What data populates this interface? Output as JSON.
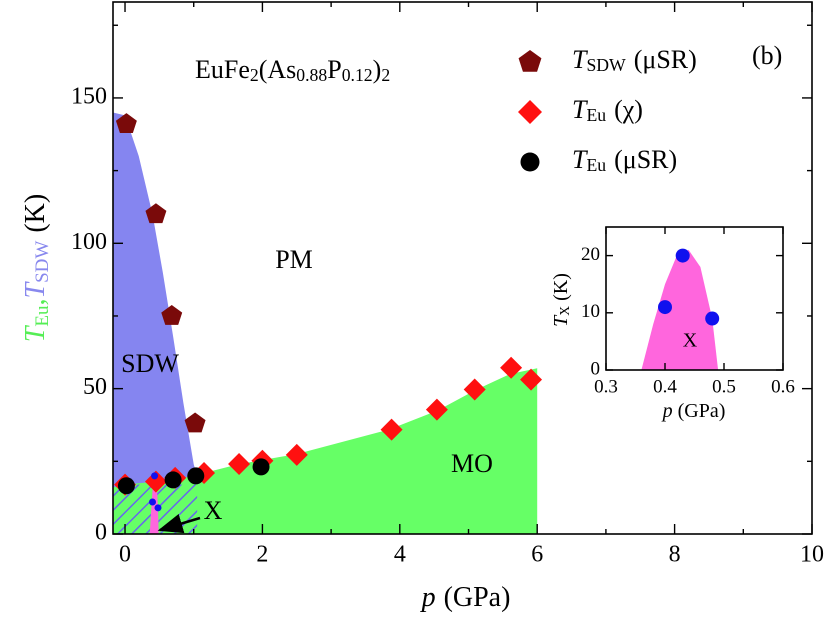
{
  "chart_data": {
    "type": "phase-diagram",
    "title_parts": [
      "EuFe",
      "2",
      "(As",
      "0.88",
      "P",
      "0.12",
      ")",
      "2"
    ],
    "panel_label": "(b)",
    "xlabel_parts": [
      "p",
      "(GPa)"
    ],
    "ylabel_parts": [
      "T",
      "Eu",
      ",",
      "T",
      "SDW",
      "(K)"
    ],
    "ylabel_colors": [
      "#55ee55",
      "#8888ee"
    ],
    "annotations": [
      "PM",
      "SDW",
      "MO",
      "X"
    ],
    "xlim": [
      -0.175,
      10
    ],
    "ylim": [
      0,
      183
    ],
    "xticks": [
      0,
      2,
      4,
      6,
      8,
      10
    ],
    "xticks_minor": [
      1,
      3,
      5,
      7,
      9
    ],
    "yticks": [
      0,
      50,
      100,
      150
    ],
    "yticks_minor": [
      25,
      75,
      125,
      175
    ],
    "regions": [
      {
        "color": "#8585f0",
        "x": [
          -0.175,
          -0.175,
          0,
          0.2,
          0.4,
          0.55,
          0.7,
          0.85,
          1.0,
          1.05,
          1.05
        ],
        "y": [
          0,
          145,
          144,
          130,
          110,
          90,
          68,
          45,
          24,
          20,
          0
        ]
      },
      {
        "color": "#66ff66",
        "x": [
          -0.175,
          -0.175,
          0,
          0.45,
          0.7,
          1.05,
          1.15,
          1.65,
          2.5,
          3.85,
          4.55,
          5.1,
          5.6,
          6,
          6
        ],
        "y": [
          0,
          16,
          17,
          18,
          19,
          20,
          21,
          24,
          27.5,
          36,
          42.5,
          49.5,
          55,
          57,
          0
        ]
      },
      {
        "color": "#ff66dd",
        "x": [
          0.36,
          0.38,
          0.4,
          0.42,
          0.44,
          0.46,
          0.48,
          0.49
        ],
        "y": [
          0,
          8,
          15,
          20,
          21,
          18,
          9,
          0
        ]
      }
    ],
    "hatch": {
      "color": "#6666ee",
      "x": [
        -0.175,
        1.05
      ],
      "y": [
        0,
        17
      ]
    },
    "series": [
      {
        "name_parts": [
          "T",
          "SDW",
          "(μSR)"
        ],
        "marker": "pentagon",
        "color": "#7a0a0a",
        "x": [
          0.02,
          0.45,
          0.68,
          1.02
        ],
        "values": [
          141,
          110,
          75,
          38
        ]
      },
      {
        "name_parts": [
          "T",
          "Eu",
          "(χ)"
        ],
        "marker": "diamond",
        "color": "#ff1010",
        "x": [
          0.0,
          0.45,
          0.73,
          1.15,
          1.66,
          2.0,
          2.5,
          3.88,
          4.54,
          5.09,
          5.62,
          5.91
        ],
        "values": [
          17,
          18,
          19.3,
          21,
          24.1,
          25.2,
          27.2,
          35.9,
          42.8,
          49.7,
          57.2,
          53.1
        ]
      },
      {
        "name_parts": [
          "T",
          "Eu",
          "(μSR)"
        ],
        "marker": "circle",
        "color": "#000000",
        "x": [
          0.02,
          0.7,
          1.03,
          1.98
        ],
        "values": [
          16.6,
          18.6,
          20,
          23.1
        ]
      }
    ],
    "x_points": {
      "color": "#1010ee",
      "x": [
        0.4,
        0.43,
        0.48
      ],
      "values": [
        11,
        20,
        9
      ]
    },
    "inset": {
      "xlim": [
        0.3,
        0.6
      ],
      "ylim": [
        0,
        25
      ],
      "xticks": [
        0.3,
        0.4,
        0.5,
        0.6
      ],
      "yticks": [
        0,
        10,
        20
      ],
      "xlabel_parts": [
        "p",
        "(GPa)"
      ],
      "ylabel_parts": [
        "T",
        "X",
        "(K)"
      ],
      "annotation": "X"
    }
  }
}
